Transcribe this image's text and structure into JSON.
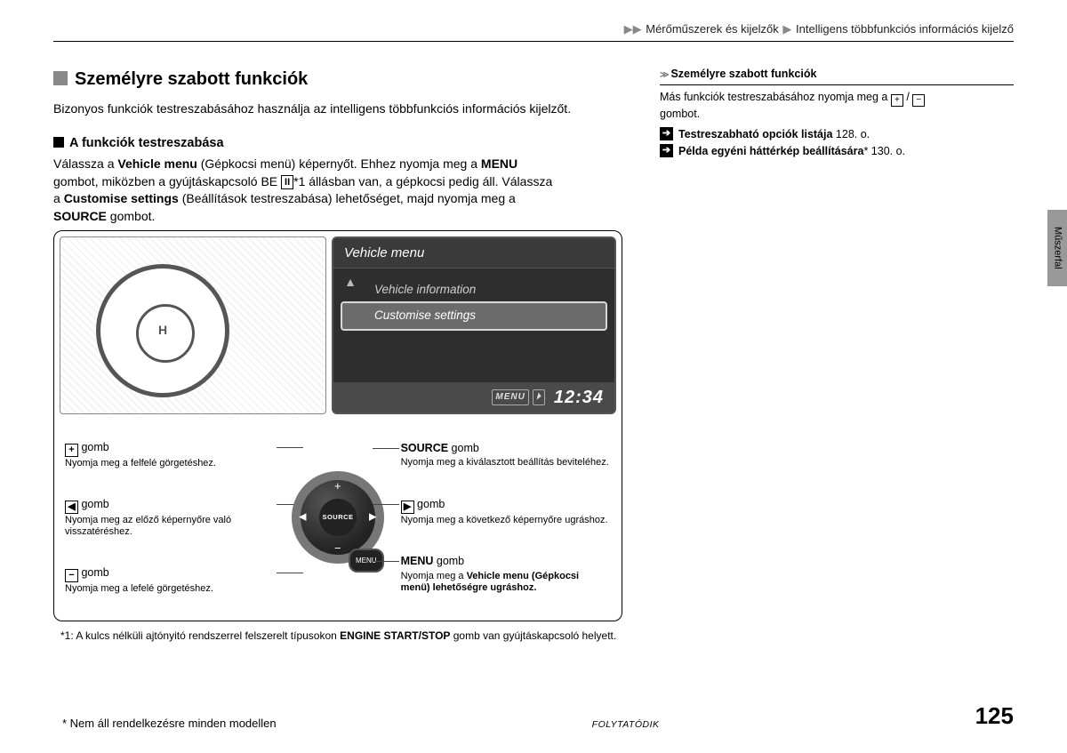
{
  "breadcrumb": {
    "part1": "Mérőműszerek és kijelzők",
    "part2": "Intelligens többfunkciós információs kijelző"
  },
  "tab_label": "Műszerfal",
  "section_title": "Személyre szabott funkciók",
  "intro": "Bizonyos funkciók testreszabásához használja az intelligens többfunkciós információs kijelzőt.",
  "subhead": "A funkciók testreszabása",
  "body": {
    "p1a": "Válassza a ",
    "p1b": "Vehicle menu",
    "p1c": " (Gépkocsi menü) képernyőt. Ehhez nyomja meg a ",
    "p1d": "MENU",
    "p2a": "gombot, miközben a gyújtáskapcsoló BE ",
    "key": "II",
    "sup": "*1",
    "p2b": " állásban van, a gépkocsi pedig áll. Válassza",
    "p3a": "a ",
    "p3b": "Customise settings",
    "p3c": " (Beállítások testreszabása) lehetőséget, majd nyomja meg a",
    "p4a": "SOURCE",
    "p4b": " gombot."
  },
  "screen": {
    "title": "Vehicle menu",
    "item1": "Vehicle information",
    "item2": "Customise settings",
    "clock": "12:34",
    "menu_icon": "MENU"
  },
  "controls": {
    "source_center": "SOURCE",
    "plus": "+",
    "minus": "−",
    "left": "◀",
    "right": "▶",
    "menu_btn": "MENU"
  },
  "legend": {
    "plus_label": " gomb",
    "plus_sym": "+",
    "plus_desc": "Nyomja meg a felfelé görgetéshez.",
    "left_label": " gomb",
    "left_sym": "◀",
    "left_desc": "Nyomja meg az előző képernyőre való visszatéréshez.",
    "minus_label": " gomb",
    "minus_sym": "−",
    "minus_desc": "Nyomja meg a lefelé görgetéshez.",
    "source_label": "SOURCE",
    "source_suffix": " gomb",
    "source_desc": "Nyomja meg a kiválasztott beállítás beviteléhez.",
    "right_label": " gomb",
    "right_sym": "▶",
    "right_desc": "Nyomja meg a következő képernyőre ugráshoz.",
    "menu_label": "MENU",
    "menu_suffix": " gomb",
    "menu_desc_a": "Nyomja meg a ",
    "menu_desc_b": "Vehicle menu (Gépkocsi menü) lehetőségre ugráshoz."
  },
  "footnote": {
    "a": "*1: A kulcs nélküli ajtónyitó rendszerrel felszerelt típusokon ",
    "b": "ENGINE START/STOP",
    "c": " gomb van gyújtáskapcsoló helyett."
  },
  "bottom": {
    "star_note": "* Nem áll rendelkezésre minden modellen",
    "continued": "FOLYTATÓDIK",
    "page": "125"
  },
  "side": {
    "head": "Személyre szabott funkciók",
    "p1a": "Más funkciók testreszabásához nyomja meg a ",
    "p1_plus": "+",
    "p1_sep": " / ",
    "p1_minus": "−",
    "p1b": " gombot.",
    "link1_text": "Testreszabható opciók listája",
    "link1_page": " 128. o.",
    "link2_text": "Példa egyéni háttérkép beállítására",
    "link2_star": "*",
    "link2_page": " 130. o."
  }
}
